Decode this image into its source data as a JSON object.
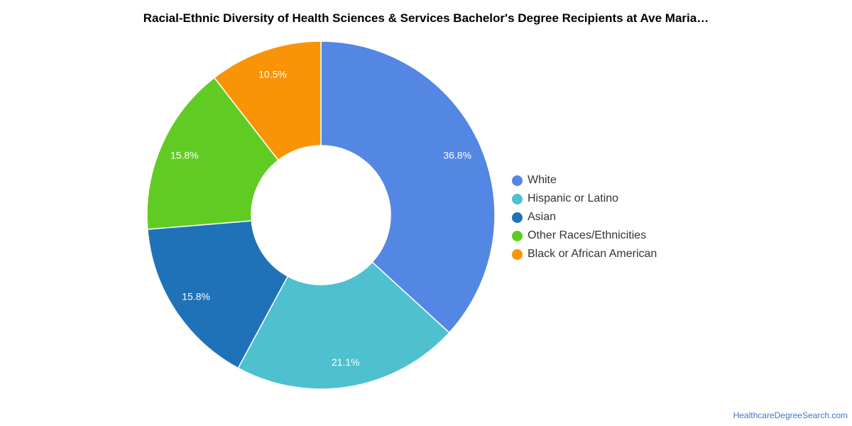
{
  "chart_data": {
    "type": "pie",
    "variant": "donut",
    "title": "Racial-Ethnic Diversity of Health Sciences & Services Bachelor's Degree Recipients at Ave Maria…",
    "legend_position": "right",
    "slices": [
      {
        "label": "White",
        "value": 36.8,
        "value_label": "36.8%",
        "color": "#5486e3"
      },
      {
        "label": "Hispanic or Latino",
        "value": 21.1,
        "value_label": "21.1%",
        "color": "#4fc0cf"
      },
      {
        "label": "Asian",
        "value": 15.8,
        "value_label": "15.8%",
        "color": "#1f72b8"
      },
      {
        "label": "Other Races/Ethnicities",
        "value": 15.8,
        "value_label": "15.8%",
        "color": "#60cc23"
      },
      {
        "label": "Black or African American",
        "value": 10.5,
        "value_label": "10.5%",
        "color": "#f89406"
      }
    ]
  },
  "source": {
    "label": "HealthcareDegreeSearch.com"
  }
}
